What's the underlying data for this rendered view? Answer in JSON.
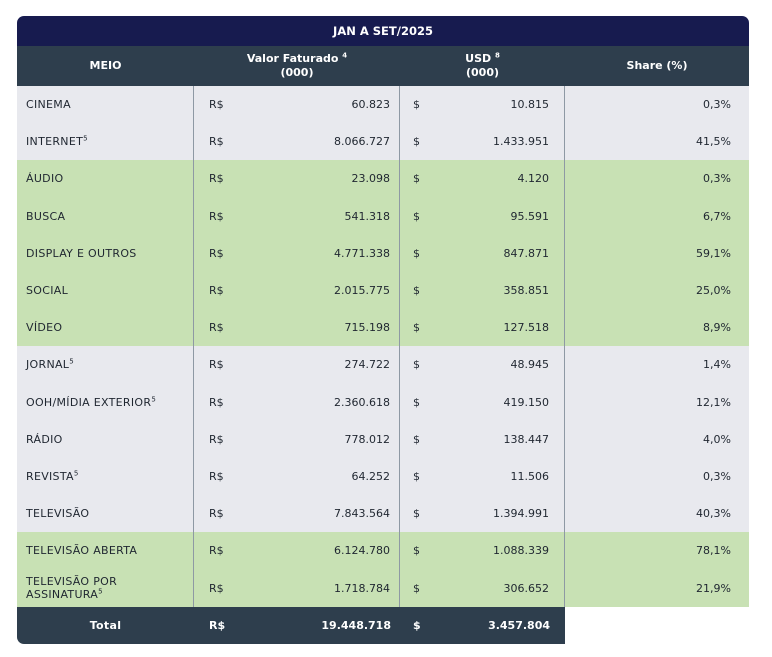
{
  "title": "JAN A SET/2025",
  "headers": {
    "meio": "MEIO",
    "valor_line1": "Valor Faturado",
    "valor_sup": "4",
    "valor_line2": "(000)",
    "usd_line1": "USD",
    "usd_sup": "8",
    "usd_line2": "(000)",
    "share": "Share (%)"
  },
  "rows": [
    {
      "meio": "CINEMA",
      "sup": "",
      "rs": "R$",
      "valor": "60.823",
      "usd_sym": "$",
      "usd": "10.815",
      "share": "0,3%",
      "color": "grey"
    },
    {
      "meio": "INTERNET",
      "sup": "5",
      "rs": "R$",
      "valor": "8.066.727",
      "usd_sym": "$",
      "usd": "1.433.951",
      "share": "41,5%",
      "color": "grey"
    },
    {
      "meio": "ÁUDIO",
      "sup": "",
      "rs": "R$",
      "valor": "23.098",
      "usd_sym": "$",
      "usd": "4.120",
      "share": "0,3%",
      "color": "green"
    },
    {
      "meio": "BUSCA",
      "sup": "",
      "rs": "R$",
      "valor": "541.318",
      "usd_sym": "$",
      "usd": "95.591",
      "share": "6,7%",
      "color": "green"
    },
    {
      "meio": "DISPLAY E OUTROS",
      "sup": "",
      "rs": "R$",
      "valor": "4.771.338",
      "usd_sym": "$",
      "usd": "847.871",
      "share": "59,1%",
      "color": "green"
    },
    {
      "meio": "SOCIAL",
      "sup": "",
      "rs": "R$",
      "valor": "2.015.775",
      "usd_sym": "$",
      "usd": "358.851",
      "share": "25,0%",
      "color": "green"
    },
    {
      "meio": "VÍDEO",
      "sup": "",
      "rs": "R$",
      "valor": "715.198",
      "usd_sym": "$",
      "usd": "127.518",
      "share": "8,9%",
      "color": "green"
    },
    {
      "meio": "JORNAL",
      "sup": "5",
      "rs": "R$",
      "valor": "274.722",
      "usd_sym": "$",
      "usd": "48.945",
      "share": "1,4%",
      "color": "grey"
    },
    {
      "meio": "OOH/MÍDIA EXTERIOR",
      "sup": "5",
      "rs": "R$",
      "valor": "2.360.618",
      "usd_sym": "$",
      "usd": "419.150",
      "share": "12,1%",
      "color": "grey"
    },
    {
      "meio": "RÁDIO",
      "sup": "",
      "rs": "R$",
      "valor": "778.012",
      "usd_sym": "$",
      "usd": "138.447",
      "share": "4,0%",
      "color": "grey"
    },
    {
      "meio": "REVISTA",
      "sup": "5",
      "rs": "R$",
      "valor": "64.252",
      "usd_sym": "$",
      "usd": "11.506",
      "share": "0,3%",
      "color": "grey"
    },
    {
      "meio": "TELEVISÃO",
      "sup": "",
      "rs": "R$",
      "valor": "7.843.564",
      "usd_sym": "$",
      "usd": "1.394.991",
      "share": "40,3%",
      "color": "grey"
    },
    {
      "meio": "TELEVISÃO ABERTA",
      "sup": "",
      "rs": "R$",
      "valor": "6.124.780",
      "usd_sym": "$",
      "usd": "1.088.339",
      "share": "78,1%",
      "color": "green"
    },
    {
      "meio": "TELEVISÃO POR ASSINATURA",
      "sup": "5",
      "rs": "R$",
      "valor": "1.718.784",
      "usd_sym": "$",
      "usd": "306.652",
      "share": "21,9%",
      "color": "green"
    }
  ],
  "total": {
    "label": "Total",
    "rs": "R$",
    "valor": "19.448.718",
    "usd_sym": "$",
    "usd": "3.457.804"
  },
  "colors": {
    "header_dark": "#171b4f",
    "header": "#2e3e4d",
    "grey_row": "#e8e9ee",
    "green_row": "#c8e1b4"
  }
}
